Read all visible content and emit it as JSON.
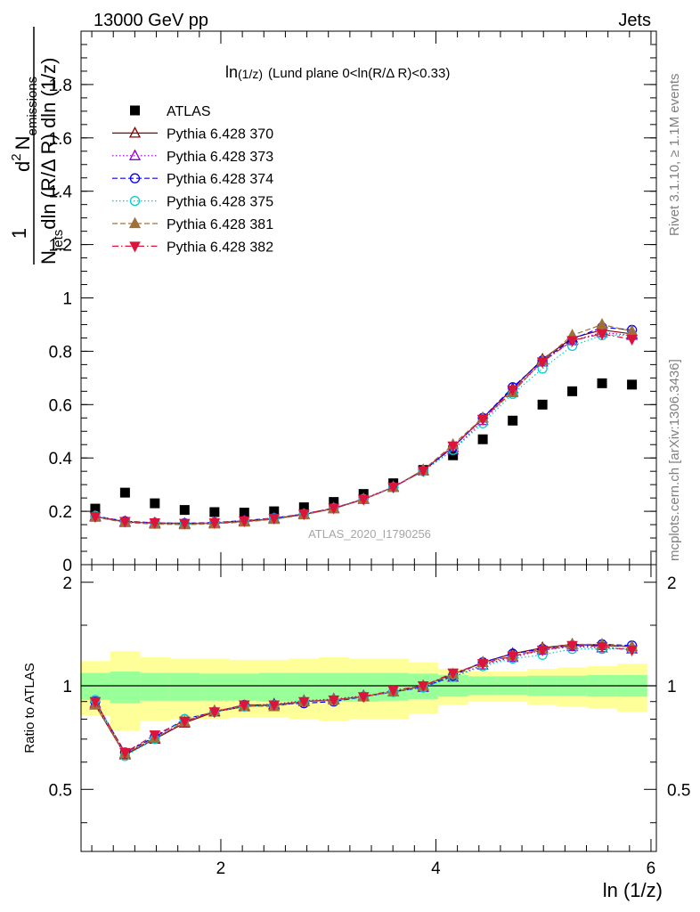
{
  "header": {
    "left": "13000 GeV pp",
    "right": "Jets"
  },
  "side_labels": {
    "rivet": "Rivet 3.1.10, ≥ 1.1M events",
    "mcplots": "mcplots.cern.ch [arXiv:1306.3436]"
  },
  "watermark": "ATLAS_2020_I1790256",
  "chart_data": [
    {
      "type": "scatter",
      "panel": "main",
      "title_main": "ln",
      "title_sub": "(1/z)",
      "title_rest": "(Lund plane 0<ln(R/Δ R)<0.33)",
      "ylabel": {
        "frac_one": "1",
        "den_N": "N",
        "den_sub": "jets",
        "den_rest": "dln (R/Δ R) dln (1/z)",
        "num_d": "d",
        "num_sup": "2",
        "num_N": "N",
        "num_sub": "emissions"
      },
      "xlim": [
        0.7,
        6.05
      ],
      "ylim": [
        0,
        2.0
      ],
      "x_ticks": [
        2,
        4,
        6
      ],
      "y_ticks": [
        0,
        0.2,
        0.4,
        0.6,
        0.8,
        1,
        1.2,
        1.4,
        1.6,
        1.8
      ],
      "y_tick_labels": [
        "0",
        "0.2",
        "0.4",
        "0.6",
        "0.8",
        "1",
        "1.2",
        "1.4",
        "1.6",
        "1.8"
      ],
      "legend_position": "upper-left",
      "x": [
        0.832,
        1.109,
        1.386,
        1.663,
        1.941,
        2.218,
        2.495,
        2.773,
        3.05,
        3.327,
        3.604,
        3.882,
        4.159,
        4.436,
        4.714,
        4.991,
        5.268,
        5.545,
        5.823
      ],
      "series": [
        {
          "name": "ATLAS",
          "color": "#000000",
          "marker": "square-filled",
          "line": "none",
          "values": [
            0.21,
            0.27,
            0.23,
            0.205,
            0.197,
            0.195,
            0.2,
            0.215,
            0.235,
            0.265,
            0.305,
            0.355,
            0.41,
            0.47,
            0.54,
            0.6,
            0.65,
            0.68,
            0.675
          ]
        },
        {
          "name": "Pythia 6.428 370",
          "color": "#8b0000",
          "marker": "triangle-open",
          "line": "solid",
          "values": [
            0.18,
            0.16,
            0.155,
            0.153,
            0.155,
            0.162,
            0.172,
            0.188,
            0.21,
            0.245,
            0.29,
            0.355,
            0.44,
            0.55,
            0.66,
            0.77,
            0.85,
            0.88,
            0.865
          ]
        },
        {
          "name": "Pythia 6.428 373",
          "color": "#9400d3",
          "marker": "triangle-open",
          "line": "dotted",
          "values": [
            0.182,
            0.161,
            0.156,
            0.154,
            0.157,
            0.164,
            0.174,
            0.19,
            0.212,
            0.247,
            0.292,
            0.352,
            0.43,
            0.54,
            0.65,
            0.76,
            0.84,
            0.87,
            0.86
          ]
        },
        {
          "name": "Pythia 6.428 374",
          "color": "#0000ff",
          "marker": "circle-open",
          "line": "dashed",
          "values": [
            0.182,
            0.163,
            0.157,
            0.155,
            0.158,
            0.165,
            0.175,
            0.19,
            0.212,
            0.246,
            0.29,
            0.352,
            0.44,
            0.55,
            0.665,
            0.765,
            0.845,
            0.89,
            0.88
          ]
        },
        {
          "name": "Pythia 6.428 375",
          "color": "#00ced1",
          "marker": "circle-open",
          "line": "dotted",
          "values": [
            0.183,
            0.16,
            0.155,
            0.153,
            0.156,
            0.163,
            0.174,
            0.19,
            0.212,
            0.246,
            0.29,
            0.35,
            0.43,
            0.53,
            0.64,
            0.735,
            0.82,
            0.86,
            0.86
          ]
        },
        {
          "name": "Pythia 6.428 381",
          "color": "#a0703a",
          "marker": "triangle-filled",
          "line": "dashed",
          "values": [
            0.178,
            0.158,
            0.152,
            0.15,
            0.153,
            0.16,
            0.17,
            0.187,
            0.21,
            0.245,
            0.29,
            0.355,
            0.45,
            0.55,
            0.645,
            0.765,
            0.86,
            0.9,
            0.875
          ]
        },
        {
          "name": "Pythia 6.428 382",
          "color": "#dc143c",
          "marker": "triangle-down-filled",
          "line": "dashdot",
          "values": [
            0.18,
            0.162,
            0.157,
            0.155,
            0.157,
            0.164,
            0.174,
            0.19,
            0.212,
            0.245,
            0.29,
            0.352,
            0.445,
            0.545,
            0.655,
            0.76,
            0.84,
            0.865,
            0.845
          ]
        }
      ]
    },
    {
      "type": "scatter",
      "panel": "ratio",
      "xlabel": "ln (1/z)",
      "ylabel": "Ratio to ATLAS",
      "xlim": [
        0.7,
        6.05
      ],
      "ylim": [
        0.33,
        2.25
      ],
      "x_ticks": [
        2,
        4,
        6
      ],
      "x_tick_labels": [
        "2",
        "4",
        "6"
      ],
      "y_ticks": [
        0.5,
        1,
        2
      ],
      "y_tick_labels": [
        "0.5",
        "1",
        "2"
      ],
      "bin_edges": [
        0.693,
        0.97,
        1.248,
        1.525,
        1.802,
        2.079,
        2.357,
        2.634,
        2.911,
        3.188,
        3.466,
        3.743,
        4.02,
        4.298,
        4.575,
        4.852,
        5.129,
        5.407,
        5.684,
        5.961
      ],
      "band_stat_low": [
        0.91,
        0.89,
        0.905,
        0.905,
        0.905,
        0.905,
        0.9,
        0.9,
        0.9,
        0.9,
        0.905,
        0.915,
        0.93,
        0.94,
        0.94,
        0.935,
        0.935,
        0.93,
        0.93
      ],
      "band_stat_high": [
        1.09,
        1.1,
        1.09,
        1.09,
        1.085,
        1.085,
        1.09,
        1.09,
        1.09,
        1.09,
        1.09,
        1.085,
        1.075,
        1.065,
        1.065,
        1.07,
        1.07,
        1.075,
        1.075
      ],
      "band_tot_low": [
        0.82,
        0.74,
        0.79,
        0.8,
        0.8,
        0.81,
        0.81,
        0.8,
        0.79,
        0.8,
        0.8,
        0.83,
        0.88,
        0.9,
        0.9,
        0.88,
        0.87,
        0.86,
        0.84
      ],
      "band_tot_high": [
        1.18,
        1.26,
        1.21,
        1.2,
        1.2,
        1.19,
        1.19,
        1.2,
        1.21,
        1.2,
        1.2,
        1.17,
        1.12,
        1.1,
        1.1,
        1.12,
        1.13,
        1.14,
        1.16
      ],
      "band_colors": {
        "total": "#ffff99",
        "stat": "#99ff99"
      },
      "series": [
        {
          "name": "Pythia 6.428 370",
          "color": "#8b0000",
          "marker": "triangle-open",
          "line": "solid",
          "values": [
            0.88,
            0.63,
            0.7,
            0.78,
            0.84,
            0.87,
            0.88,
            0.9,
            0.91,
            0.93,
            0.96,
            1.0,
            1.08,
            1.17,
            1.24,
            1.29,
            1.32,
            1.31,
            1.3
          ]
        },
        {
          "name": "Pythia 6.428 373",
          "color": "#9400d3",
          "marker": "triangle-open",
          "line": "dotted",
          "values": [
            0.89,
            0.635,
            0.705,
            0.785,
            0.845,
            0.875,
            0.885,
            0.905,
            0.915,
            0.935,
            0.96,
            0.99,
            1.06,
            1.15,
            1.21,
            1.27,
            1.3,
            1.29,
            1.28
          ]
        },
        {
          "name": "Pythia 6.428 374",
          "color": "#0000ff",
          "marker": "circle-open",
          "line": "dashed",
          "values": [
            0.9,
            0.64,
            0.71,
            0.8,
            0.84,
            0.88,
            0.88,
            0.89,
            0.9,
            0.93,
            0.96,
            0.99,
            1.07,
            1.17,
            1.24,
            1.28,
            1.31,
            1.32,
            1.31
          ]
        },
        {
          "name": "Pythia 6.428 375",
          "color": "#00ced1",
          "marker": "circle-open",
          "line": "dotted",
          "values": [
            0.91,
            0.625,
            0.7,
            0.8,
            0.84,
            0.87,
            0.88,
            0.9,
            0.905,
            0.93,
            0.96,
            0.99,
            1.06,
            1.14,
            1.2,
            1.23,
            1.28,
            1.28,
            1.28
          ]
        },
        {
          "name": "Pythia 6.428 381",
          "color": "#a0703a",
          "marker": "triangle-filled",
          "line": "dashed",
          "values": [
            0.88,
            0.635,
            0.705,
            0.785,
            0.845,
            0.875,
            0.87,
            0.9,
            0.91,
            0.93,
            0.96,
            1.0,
            1.08,
            1.17,
            1.22,
            1.28,
            1.32,
            1.32,
            1.3
          ]
        },
        {
          "name": "Pythia 6.428 382",
          "color": "#dc143c",
          "marker": "triangle-down-filled",
          "line": "dashdot",
          "values": [
            0.9,
            0.64,
            0.72,
            0.79,
            0.84,
            0.88,
            0.88,
            0.9,
            0.91,
            0.93,
            0.97,
            1.0,
            1.09,
            1.16,
            1.22,
            1.27,
            1.31,
            1.3,
            1.27
          ]
        }
      ]
    }
  ]
}
